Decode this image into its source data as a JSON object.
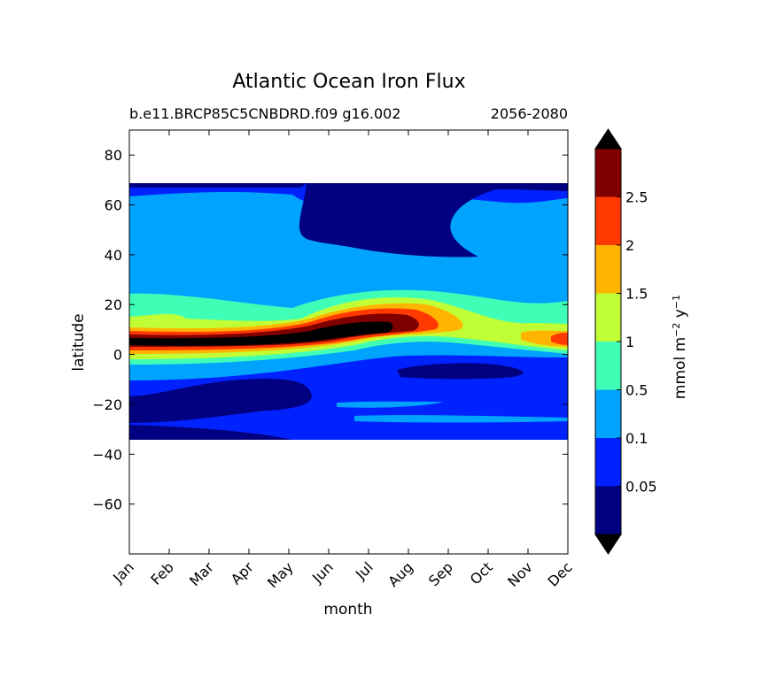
{
  "chart_data": {
    "type": "heatmap",
    "title": "Atlantic Ocean Iron Flux",
    "subtitle_left": "b.e11.BRCP85C5CNBDRD.f09 g16.002",
    "subtitle_right": "2056-2080",
    "xlabel": "month",
    "ylabel": "latitude",
    "x_categories": [
      "Jan",
      "Feb",
      "Mar",
      "Apr",
      "May",
      "Jun",
      "Jul",
      "Aug",
      "Sep",
      "Oct",
      "Nov",
      "Dec"
    ],
    "ylim": [
      -80,
      90
    ],
    "yticks": [
      80,
      60,
      40,
      20,
      0,
      -20,
      -40,
      -60
    ],
    "data_lat_range": [
      -34,
      69
    ],
    "colorbar": {
      "label_main": "mmol m",
      "label_exp1": "−2",
      "label_mid": " y",
      "label_exp2": "−1",
      "levels": [
        0.05,
        0.1,
        0.5,
        1,
        1.5,
        2,
        2.5
      ],
      "tick_labels": [
        "0.05",
        "0.1",
        "0.5",
        "1",
        "1.5",
        "2",
        "2.5"
      ],
      "extend": "both",
      "colors": [
        "#000080",
        "#0022ff",
        "#00a4ff",
        "#3fffb7",
        "#c0ff36",
        "#ffb500",
        "#ff3900",
        "#800000"
      ],
      "under_color": "#000000",
      "over_color": "#000000"
    },
    "contour_bands": [
      {
        "level": "0.1-0.5",
        "lat_band": [
          -10,
          25
        ],
        "note_months": "all"
      },
      {
        "level": "0.5-1",
        "lat_band": [
          8,
          24
        ],
        "peak_month": "Jul"
      },
      {
        "level": "1-1.5",
        "lat_band": [
          5,
          20
        ],
        "peak_month": "Aug"
      },
      {
        "level": "1.5-2",
        "lat_band": [
          6,
          18
        ],
        "peak_month": "Aug"
      },
      {
        "level": "2-2.5",
        "lat_band": [
          7,
          17
        ],
        "peak_month": "Jul"
      },
      {
        "level": ">2.5",
        "lat_band": [
          3,
          13
        ],
        "months": "Jan-Aug"
      },
      {
        "level": "0-0.05",
        "lat_band": [
          44,
          69
        ],
        "months": "Jun-Oct"
      },
      {
        "level": "0-0.05",
        "lat_band": [
          -34,
          -10
        ],
        "months": "Jan-Jun"
      },
      {
        "level": "0-0.05",
        "lat_band": [
          -9,
          -4
        ],
        "months": "Aug-Oct"
      }
    ]
  }
}
